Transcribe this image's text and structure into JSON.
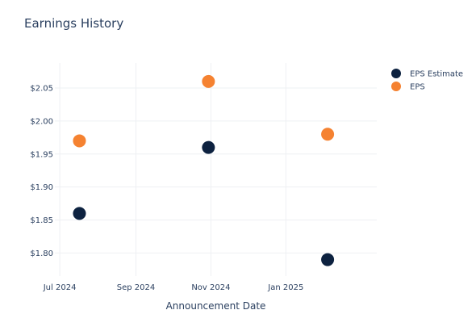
{
  "chart_data": {
    "type": "scatter",
    "title": "Earnings History",
    "xlabel": "Announcement Date",
    "ylabel": "",
    "x_ticks": [
      {
        "date": "2024-07-01",
        "label": "Jul 2024"
      },
      {
        "date": "2024-09-01",
        "label": "Sep 2024"
      },
      {
        "date": "2024-11-01",
        "label": "Nov 2024"
      },
      {
        "date": "2025-01-01",
        "label": "Jan 2025"
      }
    ],
    "xlim": [
      "2024-06-27",
      "2025-03-16"
    ],
    "y_ticks": [
      {
        "value": 1.8,
        "label": "$1.80"
      },
      {
        "value": 1.85,
        "label": "$1.85"
      },
      {
        "value": 1.9,
        "label": "$1.90"
      },
      {
        "value": 1.95,
        "label": "$1.95"
      },
      {
        "value": 2.0,
        "label": "$2.00"
      },
      {
        "value": 2.05,
        "label": "$2.05"
      }
    ],
    "ylim": [
      1.765,
      2.088
    ],
    "grid": true,
    "legend": "top-right",
    "series": [
      {
        "name": "EPS Estimate",
        "color": "#0d2240",
        "points": [
          {
            "x": "2024-07-17",
            "y": 1.86
          },
          {
            "x": "2024-10-30",
            "y": 1.96
          },
          {
            "x": "2025-02-04",
            "y": 1.79
          }
        ]
      },
      {
        "name": "EPS",
        "color": "#f58231",
        "points": [
          {
            "x": "2024-07-17",
            "y": 1.97
          },
          {
            "x": "2024-10-30",
            "y": 2.06
          },
          {
            "x": "2025-02-04",
            "y": 1.98
          }
        ]
      }
    ]
  }
}
